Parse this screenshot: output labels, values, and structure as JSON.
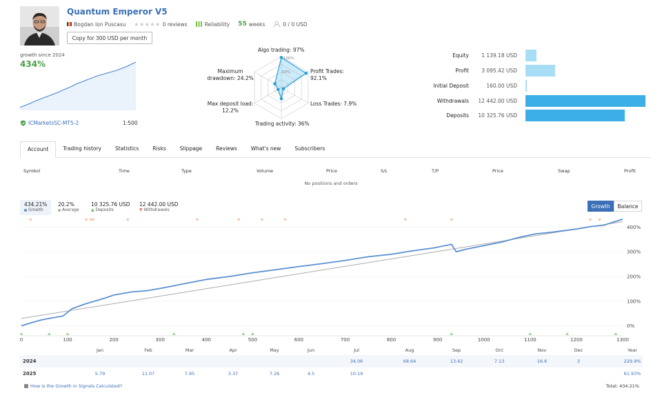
{
  "header": {
    "title": "Quantum Emperor V5",
    "author": "Bogdan Ion Puscasu",
    "reviews": "0 reviews",
    "reliability_label": "Reliability",
    "weeks_value": "55",
    "weeks_label": "weeks",
    "subscribers": "0 / 0 USD",
    "copy_button": "Copy for 300 USD per month"
  },
  "growth_summary": {
    "label": "growth since 2024",
    "value": "434%",
    "broker": "ICMarketsSC-MT5-2",
    "leverage": "1:500",
    "curve": [
      2,
      6,
      10,
      15,
      19,
      23,
      27,
      31,
      35,
      40,
      44,
      49,
      54,
      58,
      62,
      66,
      70,
      73,
      76,
      79,
      82,
      86,
      90,
      95,
      100
    ]
  },
  "radar": {
    "labels": {
      "algo": "Algo trading: 97%",
      "profit": "Profit Trades:\n92.1%",
      "loss": "Loss Trades: 7.9%",
      "activity": "Trading activity: 36%",
      "deposit": "Max deposit load:\n12.2%",
      "drawdown": "Maximum\ndrawdown: 24.2%"
    },
    "ring100": "100%",
    "ring50": "50%",
    "values": [
      97,
      92.1,
      7.9,
      36,
      12.2,
      24.2
    ]
  },
  "balance": {
    "rows": [
      {
        "label": "Equity",
        "value": "1 139.18 USD",
        "amount": 1139.18,
        "color": "#a8def5"
      },
      {
        "label": "Profit",
        "value": "3 095.42 USD",
        "amount": 3095.42,
        "color": "#a8def5"
      },
      {
        "label": "Initial Deposit",
        "value": "160.00 USD",
        "amount": 160,
        "color": "#a8def5"
      },
      {
        "label": "Withdrawals",
        "value": "12 442.00 USD",
        "amount": 12442,
        "color": "#3cb0e6"
      },
      {
        "label": "Deposits",
        "value": "10 325.76 USD",
        "amount": 10325.76,
        "color": "#3cb0e6"
      }
    ]
  },
  "tabs": [
    "Account",
    "Trading history",
    "Statistics",
    "Risks",
    "Slippage",
    "Reviews",
    "What's new",
    "Subscribers"
  ],
  "positions": {
    "headers": [
      "Symbol",
      "Time",
      "Type",
      "Volume",
      "Price",
      "S/L",
      "T/P",
      "Price",
      "Swap",
      "Profit"
    ],
    "empty": "No positions and orders"
  },
  "stats": {
    "growth_value": "434.21%",
    "growth_label": "Growth",
    "average_value": "20.2%",
    "average_label": "Average",
    "deposits_value": "10 325.76 USD",
    "deposits_label": "Deposits",
    "withdrawals_value": "12 442.00 USD",
    "withdrawals_label": "Withdrawals"
  },
  "chart_toggle": {
    "growth": "Growth",
    "balance": "Balance"
  },
  "chart_data": {
    "type": "line",
    "title": "Growth",
    "xlabel": "",
    "ylabel": "",
    "x_ticks": [
      0,
      100,
      200,
      300,
      400,
      500,
      600,
      700,
      800,
      900,
      1000,
      1100,
      1200,
      1300
    ],
    "x_tick_labels": [
      "0",
      "100",
      "200",
      "300",
      "400",
      "500",
      "600",
      "700",
      "800",
      "900",
      "1000",
      "1100",
      "1200",
      "1300"
    ],
    "y_ticks": [
      0,
      100,
      200,
      300,
      400
    ],
    "y_tick_labels": [
      "0%",
      "100%",
      "200%",
      "300%",
      "400%"
    ],
    "xlim": [
      0,
      1300
    ],
    "ylim": [
      -40,
      440
    ],
    "series": [
      {
        "name": "Growth",
        "color": "#5b8fd0",
        "x": [
          0,
          20,
          45,
          60,
          90,
          110,
          140,
          180,
          200,
          240,
          270,
          310,
          350,
          400,
          450,
          500,
          560,
          600,
          650,
          700,
          750,
          800,
          850,
          890,
          930,
          940,
          960,
          1000,
          1040,
          1050,
          1080,
          1110,
          1150,
          1200,
          1230,
          1260,
          1280,
          1300
        ],
        "y": [
          0,
          12,
          25,
          30,
          40,
          70,
          90,
          112,
          125,
          138,
          142,
          155,
          170,
          188,
          200,
          215,
          230,
          240,
          252,
          265,
          280,
          290,
          305,
          315,
          330,
          300,
          310,
          325,
          340,
          345,
          360,
          372,
          380,
          392,
          402,
          408,
          420,
          432
        ]
      },
      {
        "name": "Average",
        "color": "#aaaaaa",
        "x": [
          0,
          1300
        ],
        "y": [
          30,
          422
        ]
      }
    ],
    "deposit_markers_x": [
      0,
      60,
      100,
      330,
      480,
      500,
      930,
      1100,
      1180,
      1285
    ],
    "withdrawal_markers_x": [
      20,
      140,
      150,
      155,
      230,
      380,
      470,
      520,
      570,
      830,
      930,
      1230,
      1250
    ]
  },
  "monthly": {
    "months": [
      "Jan",
      "Feb",
      "Mar",
      "Apr",
      "May",
      "Jun",
      "Jul",
      "Aug",
      "Sep",
      "Oct",
      "Nov",
      "Dec",
      "Year"
    ],
    "rows": [
      {
        "year": "2024",
        "values": [
          "",
          "",
          "",
          "",
          "",
          "",
          "34.06",
          "68.64",
          "13.42",
          "7.13",
          "16.6",
          "3",
          "229.9%"
        ]
      },
      {
        "year": "2025",
        "values": [
          "5.79",
          "11.07",
          "7.95",
          "3.37",
          "7.26",
          "4.5",
          "10.19",
          "",
          "",
          "",
          "",
          "",
          "61.93%"
        ]
      }
    ]
  },
  "footer": {
    "help": "How is the Growth in Signals Calculated?",
    "total": "Total: 434.21%"
  },
  "colors": {
    "link": "#3b6fb6",
    "green": "#4aa04a",
    "bar_dark": "#3cb0e6",
    "bar_light": "#a8def5"
  }
}
